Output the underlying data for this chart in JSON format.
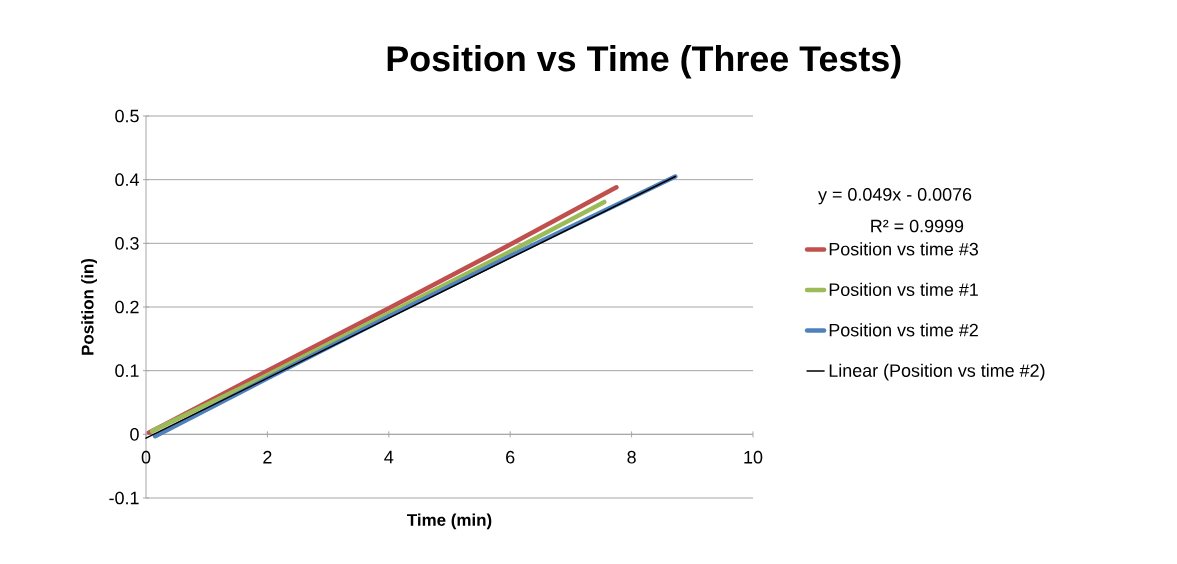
{
  "chart_data": {
    "type": "line",
    "title": "Position vs Time (Three Tests)",
    "xlabel": "Time (min)",
    "ylabel": "Position (in)",
    "xlim": [
      0,
      10
    ],
    "xticks": [
      0,
      2,
      4,
      6,
      8,
      10
    ],
    "ylim": [
      -0.1,
      0.5
    ],
    "yticks": [
      -0.1,
      0,
      0.1,
      0.2,
      0.3,
      0.4,
      0.5
    ],
    "grid": "y",
    "legend": "right",
    "annotations": [
      "y = 0.049x - 0.0076",
      "R² = 0.9999"
    ],
    "series": [
      {
        "name": "Position vs time #3",
        "color": "#c0504d",
        "x": [
          0.05,
          0.3,
          2,
          4,
          6,
          7.75
        ],
        "values": [
          0.003,
          0.015,
          0.1,
          0.198,
          0.298,
          0.388
        ]
      },
      {
        "name": "Position vs time #1",
        "color": "#9bbb59",
        "x": [
          0.1,
          2,
          4,
          6,
          7.55
        ],
        "values": [
          0.005,
          0.093,
          0.19,
          0.287,
          0.365
        ]
      },
      {
        "name": "Position vs time #2",
        "color": "#4f81bd",
        "x": [
          0.15,
          2,
          4,
          6,
          8.72
        ],
        "values": [
          -0.003,
          0.088,
          0.185,
          0.28,
          0.405
        ]
      },
      {
        "name": "Linear (Position vs time #2)",
        "color": "#000000",
        "type": "line",
        "x": [
          0,
          8.72
        ],
        "values": [
          -0.006,
          0.405
        ]
      }
    ]
  }
}
